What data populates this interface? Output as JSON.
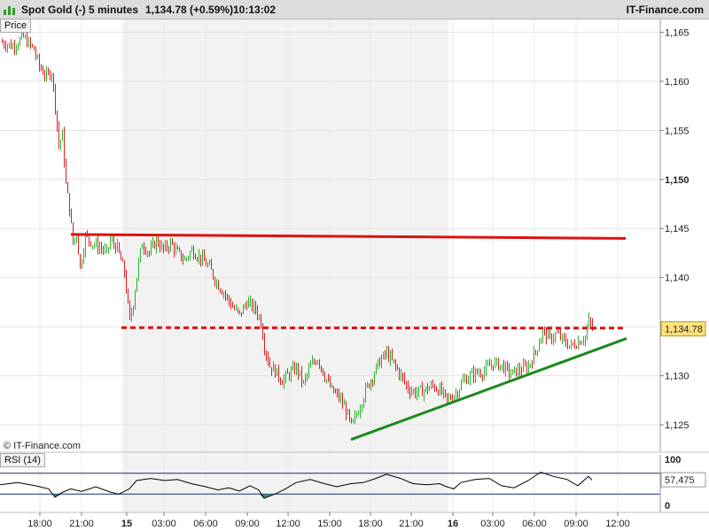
{
  "header": {
    "instrument": "Spot Gold (-)",
    "interval": "5 minutes",
    "price_change": "1,134.78 (+0.59%)",
    "time": "10:13:02",
    "brand": "IT-Finance.com",
    "watermark": "© IT-Finance.com"
  },
  "colors": {
    "up": "#2fae2f",
    "down": "#d42020",
    "resistance": "#e01010",
    "trend": "#1c8a1c",
    "price_tag_bg": "#ffe27a",
    "rsi_line": "#000000",
    "rsi_fill_down": "#3a8a8a",
    "shaded_session": "#f2f2f2"
  },
  "chart_data": [
    {
      "type": "candlestick",
      "panel_label": "Price",
      "last_price_label": "1,134.78",
      "y_ticks": [
        "1,165",
        "1,160",
        "1,155",
        "1,150",
        "1,145",
        "1,140",
        "1,135",
        "1,130",
        "1,125"
      ],
      "y_values": [
        1165,
        1160,
        1155,
        1150,
        1145,
        1140,
        1135,
        1130,
        1125
      ],
      "bold_tick": "1,150",
      "ylim": [
        1122.3,
        1166.3
      ],
      "x_ticks": [
        "18:00",
        "21:00",
        "15",
        "03:00",
        "06:00",
        "09:00",
        "12:00",
        "15:00",
        "18:00",
        "21:00",
        "16",
        "03:00",
        "06:00",
        "09:00",
        "12:00"
      ],
      "x_bold_ticks": [
        "15",
        "16"
      ],
      "grid": true,
      "last_price": 1134.78,
      "change_pct": 0.59,
      "path": [
        [
          0,
          1164.0
        ],
        [
          14,
          1163.6
        ],
        [
          26,
          1164.5
        ],
        [
          38,
          1163.2
        ],
        [
          44,
          1161.5
        ],
        [
          52,
          1160.5
        ],
        [
          58,
          1161.0
        ],
        [
          62,
          1157.5
        ],
        [
          66,
          1153.5
        ],
        [
          70,
          1154.5
        ],
        [
          74,
          1149.5
        ],
        [
          78,
          1147.0
        ],
        [
          82,
          1143.5
        ],
        [
          86,
          1144.5
        ],
        [
          90,
          1141.0
        ],
        [
          96,
          1144.2
        ],
        [
          104,
          1143.5
        ],
        [
          114,
          1143.0
        ],
        [
          120,
          1142.5
        ],
        [
          124,
          1143.8
        ],
        [
          132,
          1143.0
        ],
        [
          140,
          1140.5
        ],
        [
          146,
          1135.5
        ],
        [
          150,
          1137.5
        ],
        [
          156,
          1141.5
        ],
        [
          160,
          1143.5
        ],
        [
          168,
          1142.5
        ],
        [
          176,
          1143.8
        ],
        [
          184,
          1142.8
        ],
        [
          192,
          1143.5
        ],
        [
          200,
          1142.5
        ],
        [
          208,
          1141.8
        ],
        [
          216,
          1142.8
        ],
        [
          226,
          1142.0
        ],
        [
          236,
          1141.0
        ],
        [
          244,
          1139.5
        ],
        [
          252,
          1138.5
        ],
        [
          262,
          1137.0
        ],
        [
          270,
          1136.2
        ],
        [
          278,
          1137.5
        ],
        [
          288,
          1136.8
        ],
        [
          294,
          1135.5
        ],
        [
          298,
          1133.0
        ],
        [
          304,
          1131.0
        ],
        [
          310,
          1130.5
        ],
        [
          318,
          1129.5
        ],
        [
          326,
          1130.2
        ],
        [
          334,
          1130.8
        ],
        [
          342,
          1129.2
        ],
        [
          350,
          1131.0
        ],
        [
          358,
          1131.8
        ],
        [
          366,
          1130.0
        ],
        [
          374,
          1128.5
        ],
        [
          382,
          1127.8
        ],
        [
          390,
          1126.5
        ],
        [
          396,
          1124.8
        ],
        [
          404,
          1126.5
        ],
        [
          412,
          1128.5
        ],
        [
          420,
          1130.0
        ],
        [
          428,
          1131.5
        ],
        [
          436,
          1132.3
        ],
        [
          444,
          1131.2
        ],
        [
          452,
          1130.0
        ],
        [
          460,
          1128.7
        ],
        [
          468,
          1128.3
        ],
        [
          478,
          1128.5
        ],
        [
          488,
          1129.0
        ],
        [
          496,
          1128.5
        ],
        [
          504,
          1127.5
        ],
        [
          514,
          1128.2
        ],
        [
          522,
          1129.5
        ],
        [
          534,
          1130.2
        ],
        [
          546,
          1130.5
        ],
        [
          556,
          1131.3
        ],
        [
          566,
          1131.0
        ],
        [
          576,
          1130.2
        ],
        [
          586,
          1130.6
        ],
        [
          596,
          1131.0
        ],
        [
          604,
          1132.5
        ],
        [
          612,
          1134.5
        ],
        [
          620,
          1133.8
        ],
        [
          628,
          1134.3
        ],
        [
          636,
          1133.5
        ],
        [
          644,
          1133.0
        ],
        [
          652,
          1133.5
        ],
        [
          660,
          1134.0
        ],
        [
          664,
          1135.5
        ],
        [
          668,
          1134.78
        ]
      ],
      "annotations": [
        {
          "kind": "resistance",
          "style": "solid",
          "x1": 80,
          "y1": 1144.4,
          "x2": 706,
          "y2": 1144.0
        },
        {
          "kind": "support",
          "style": "dashed",
          "x1": 137,
          "y1": 1134.9,
          "x2": 706,
          "y2": 1134.85
        },
        {
          "kind": "trendline",
          "style": "solid",
          "x1": 396,
          "y1": 1123.5,
          "x2": 707,
          "y2": 1133.8
        }
      ]
    },
    {
      "type": "line",
      "panel_label": "RSI (14)",
      "last_value_label": "57,475",
      "y_ticks": [
        "100",
        "0"
      ],
      "ylim": [
        0,
        100
      ],
      "bands": [
        70,
        30
      ],
      "last_value": 57.475,
      "values": [
        [
          0,
          48
        ],
        [
          20,
          52
        ],
        [
          40,
          46
        ],
        [
          55,
          40
        ],
        [
          62,
          24
        ],
        [
          70,
          33
        ],
        [
          80,
          40
        ],
        [
          92,
          35
        ],
        [
          108,
          44
        ],
        [
          124,
          34
        ],
        [
          134,
          30
        ],
        [
          146,
          40
        ],
        [
          154,
          56
        ],
        [
          170,
          60
        ],
        [
          186,
          56
        ],
        [
          200,
          58
        ],
        [
          216,
          50
        ],
        [
          232,
          44
        ],
        [
          246,
          38
        ],
        [
          258,
          42
        ],
        [
          270,
          36
        ],
        [
          282,
          46
        ],
        [
          292,
          38
        ],
        [
          298,
          22
        ],
        [
          310,
          30
        ],
        [
          320,
          38
        ],
        [
          334,
          52
        ],
        [
          350,
          58
        ],
        [
          366,
          50
        ],
        [
          380,
          44
        ],
        [
          396,
          50
        ],
        [
          410,
          52
        ],
        [
          424,
          60
        ],
        [
          436,
          68
        ],
        [
          452,
          60
        ],
        [
          466,
          50
        ],
        [
          482,
          48
        ],
        [
          496,
          50
        ],
        [
          504,
          44
        ],
        [
          512,
          40
        ],
        [
          520,
          52
        ],
        [
          536,
          58
        ],
        [
          552,
          60
        ],
        [
          566,
          46
        ],
        [
          580,
          42
        ],
        [
          596,
          56
        ],
        [
          610,
          72
        ],
        [
          624,
          64
        ],
        [
          640,
          58
        ],
        [
          652,
          46
        ],
        [
          660,
          58
        ],
        [
          664,
          64
        ],
        [
          668,
          57
        ]
      ]
    }
  ]
}
